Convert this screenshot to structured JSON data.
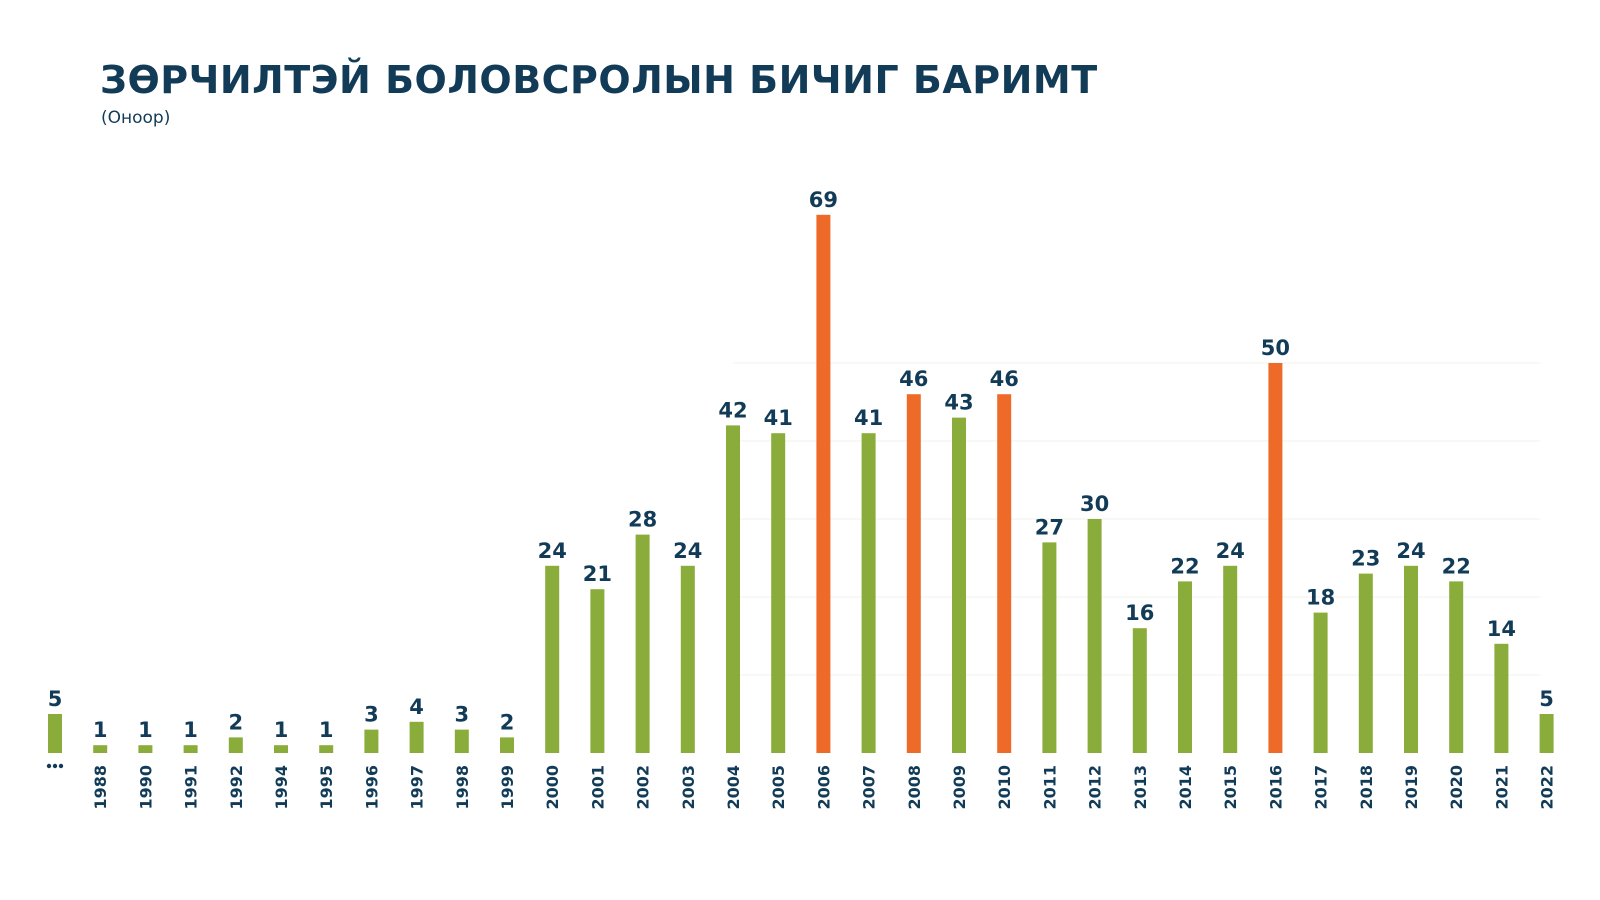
{
  "chart_data": {
    "type": "bar",
    "title": "ЗӨРЧИЛТЭЙ БОЛОВСРОЛЫН БИЧИГ БАРИМТ",
    "subtitle": "(Оноор)",
    "xlabel": "",
    "ylabel": "",
    "ylim": [
      0,
      70
    ],
    "categories": [
      "...",
      "1988",
      "1990",
      "1991",
      "1992",
      "1994",
      "1995",
      "1996",
      "1997",
      "1998",
      "1999",
      "2000",
      "2001",
      "2002",
      "2003",
      "2004",
      "2005",
      "2006",
      "2007",
      "2008",
      "2009",
      "2010",
      "2011",
      "2012",
      "2013",
      "2014",
      "2015",
      "2016",
      "2017",
      "2018",
      "2019",
      "2020",
      "2021",
      "2022"
    ],
    "values": [
      5,
      1,
      1,
      1,
      2,
      1,
      1,
      3,
      4,
      3,
      2,
      24,
      21,
      28,
      24,
      42,
      41,
      69,
      41,
      46,
      43,
      46,
      27,
      30,
      16,
      22,
      24,
      50,
      18,
      23,
      24,
      22,
      14,
      5
    ],
    "highlighted": [
      "2006",
      "2008",
      "2010",
      "2016"
    ],
    "colors": {
      "normal": "#8aac3a",
      "highlight": "#ee6a29",
      "text": "#123b57",
      "grid": "#f1f1ea"
    }
  }
}
